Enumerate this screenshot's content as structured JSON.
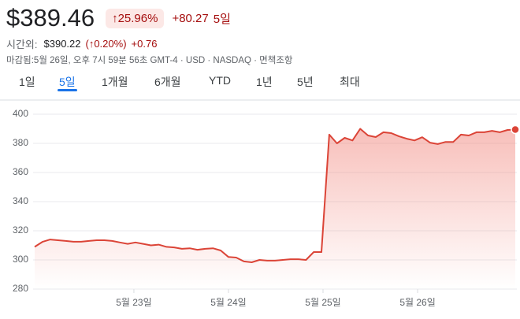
{
  "header": {
    "price": "$389.46",
    "change_pct": "↑25.96%",
    "change_abs": "+80.27",
    "period": "5일",
    "after_hours_label": "시간외:",
    "after_hours_price": "$390.22",
    "after_hours_pct": "(↑0.20%)",
    "after_hours_change": "+0.76",
    "status": "마감됨:5월 26일, 오후 7시 59분 56초 GMT-4 · USD · NASDAQ · 면책조항"
  },
  "tabs": {
    "items": [
      "1일",
      "5일",
      "1개월",
      "6개월",
      "YTD",
      "1년",
      "5년",
      "최대"
    ],
    "selected": 1
  },
  "chart_data": {
    "type": "line",
    "color": "#db4437",
    "grid": true,
    "ylim": [
      280,
      400
    ],
    "yticks": [
      280,
      300,
      320,
      340,
      360,
      380,
      400
    ],
    "xlim": [
      0,
      62
    ],
    "xticks": [
      {
        "value": 12.8,
        "label": "5월 23일"
      },
      {
        "value": 25,
        "label": "5월 24일"
      },
      {
        "value": 37.2,
        "label": "5월 25일"
      },
      {
        "value": 49.4,
        "label": "5월 26일"
      }
    ],
    "values": [
      309,
      312.4,
      314,
      313.5,
      313,
      312.5,
      312.5,
      313,
      313.5,
      313.5,
      313,
      312,
      311,
      312,
      311,
      310,
      310.5,
      309,
      308.6,
      307.6,
      308,
      307,
      307.6,
      308,
      306.5,
      302,
      301.6,
      299,
      298.4,
      300,
      299.5,
      299.5,
      300,
      300.5,
      300.5,
      300,
      305.4,
      305.4,
      386,
      380,
      383.8,
      382,
      390,
      385.4,
      384.3,
      387.6,
      387,
      384.8,
      383.2,
      382,
      384.2,
      380.5,
      379.5,
      381,
      381,
      386,
      385.4,
      387.6,
      387.6,
      388.6,
      387.6,
      389.2,
      389.46
    ]
  }
}
